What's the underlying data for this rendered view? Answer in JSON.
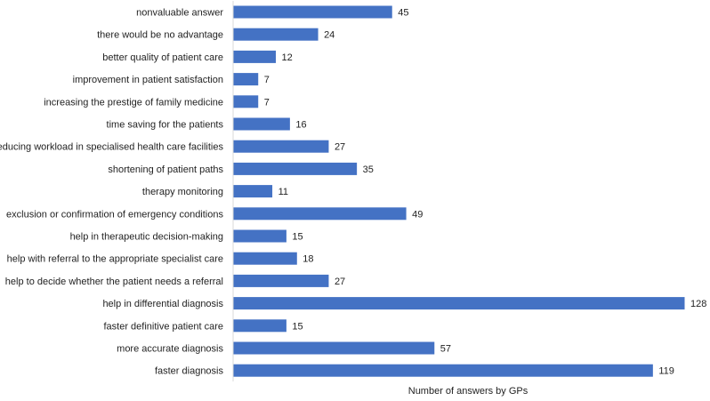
{
  "chart_data": {
    "type": "bar",
    "orientation": "horizontal",
    "categories": [
      "nonvaluable answer",
      "there would be no advantage",
      "better quality of patient care",
      "improvement in patient satisfaction",
      "increasing the prestige of family medicine",
      "time saving for the patients",
      "reducing workload in specialised health care facilities",
      "shortening of patient paths",
      "therapy monitoring",
      "exclusion or confirmation of emergency conditions",
      "help in therapeutic decision-making",
      "help with referral to the appropriate specialist care",
      "help to decide whether the patient needs a referral",
      "help in differential diagnosis",
      "faster definitive patient care",
      "more accurate diagnosis",
      "faster diagnosis"
    ],
    "values": [
      45,
      24,
      12,
      7,
      7,
      16,
      27,
      35,
      11,
      49,
      15,
      18,
      27,
      128,
      15,
      57,
      119
    ],
    "title": "",
    "xlabel": "Number of answers by GPs",
    "ylabel": "",
    "xlim": [
      0,
      128
    ],
    "grid": false,
    "legend": false,
    "data_labels": true,
    "bar_color": "#4472C4"
  }
}
